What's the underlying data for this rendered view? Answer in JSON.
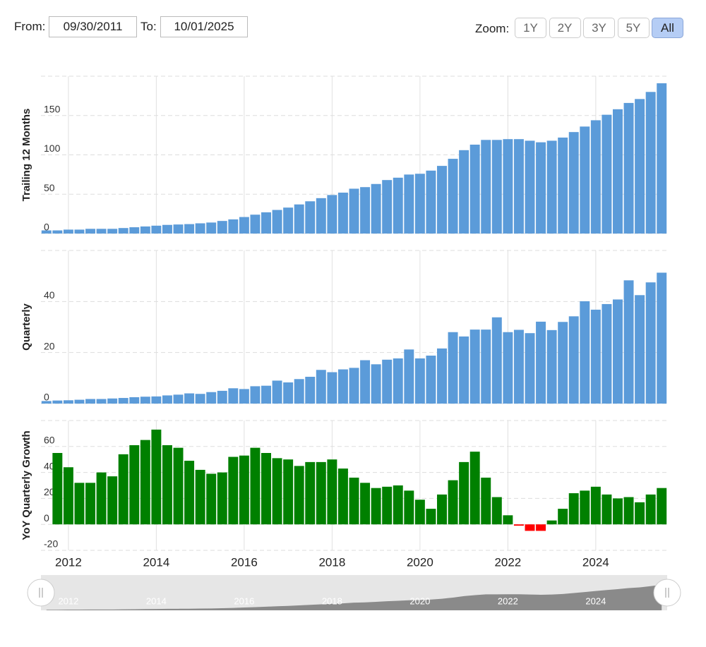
{
  "controls": {
    "from_label": "From:",
    "from_value": "09/30/2011",
    "to_label": "To:",
    "to_value": "10/01/2025",
    "zoom_label": "Zoom:",
    "zoom_buttons": [
      "1Y",
      "2Y",
      "3Y",
      "5Y",
      "All"
    ],
    "zoom_active_index": 4
  },
  "chart_data": [
    {
      "type": "bar",
      "y_label": "Trailing 12 Months",
      "color": "#5b9bd9",
      "x": [
        2011.5,
        2011.75,
        2012,
        2012.25,
        2012.5,
        2012.75,
        2013,
        2013.25,
        2013.5,
        2013.75,
        2014,
        2014.25,
        2014.5,
        2014.75,
        2015,
        2015.25,
        2015.5,
        2015.75,
        2016,
        2016.25,
        2016.5,
        2016.75,
        2017,
        2017.25,
        2017.5,
        2017.75,
        2018,
        2018.25,
        2018.5,
        2018.75,
        2019,
        2019.25,
        2019.5,
        2019.75,
        2020,
        2020.25,
        2020.5,
        2020.75,
        2021,
        2021.25,
        2021.5,
        2021.75,
        2022,
        2022.25,
        2022.5,
        2022.75,
        2023,
        2023.25,
        2023.5,
        2023.75,
        2024,
        2024.25,
        2024.5,
        2024.75,
        2025,
        2025.25,
        2025.5
      ],
      "values": [
        4,
        4,
        5,
        5,
        6,
        6,
        6,
        7,
        8,
        9,
        10,
        11,
        11.5,
        12,
        13,
        14,
        16,
        18,
        21,
        24,
        27,
        30,
        33,
        37,
        41,
        45,
        49,
        52,
        57,
        59,
        63,
        68,
        71,
        75,
        76,
        80,
        86,
        95,
        106,
        113,
        119,
        119,
        120,
        120,
        118,
        116,
        118,
        122,
        129,
        136,
        144,
        151,
        158,
        166,
        171,
        180,
        191
      ],
      "xlim": [
        2011.375,
        2025.625
      ],
      "xticks": [
        2012,
        2014,
        2016,
        2018,
        2020,
        2022,
        2024
      ],
      "ylim": [
        0,
        200
      ],
      "yticks": [
        0,
        50,
        100,
        150
      ],
      "grid": true
    },
    {
      "type": "bar",
      "y_label": "Quarterly",
      "color": "#5b9bd9",
      "x": [
        2011.5,
        2011.75,
        2012,
        2012.25,
        2012.5,
        2012.75,
        2013,
        2013.25,
        2013.5,
        2013.75,
        2014,
        2014.25,
        2014.5,
        2014.75,
        2015,
        2015.25,
        2015.5,
        2015.75,
        2016,
        2016.25,
        2016.5,
        2016.75,
        2017,
        2017.25,
        2017.5,
        2017.75,
        2018,
        2018.25,
        2018.5,
        2018.75,
        2019,
        2019.25,
        2019.5,
        2019.75,
        2020,
        2020.25,
        2020.5,
        2020.75,
        2021,
        2021.25,
        2021.5,
        2021.75,
        2022,
        2022.25,
        2022.5,
        2022.75,
        2023,
        2023.25,
        2023.5,
        2023.75,
        2024,
        2024.25,
        2024.5,
        2024.75,
        2025,
        2025.25,
        2025.5
      ],
      "values": [
        1,
        1.2,
        1.3,
        1.5,
        1.8,
        1.8,
        2,
        2.2,
        2.5,
        2.7,
        2.8,
        3.2,
        3.5,
        4,
        3.8,
        4.5,
        5,
        6,
        5.7,
        6.8,
        7,
        9,
        8.3,
        9.6,
        10.5,
        13.2,
        12.3,
        13.4,
        14,
        17,
        15.4,
        17.2,
        17.7,
        21.2,
        17.7,
        18.8,
        21.6,
        28,
        26.3,
        29,
        29,
        33.8,
        28,
        28.9,
        27.6,
        32.1,
        28.8,
        32,
        34.2,
        40.1,
        36.8,
        39,
        40.8,
        48.3,
        42.5,
        47.5,
        51.3
      ],
      "xlim": [
        2011.375,
        2025.625
      ],
      "xticks": [
        2012,
        2014,
        2016,
        2018,
        2020,
        2022,
        2024
      ],
      "ylim": [
        0,
        60
      ],
      "yticks": [
        0,
        20,
        40
      ],
      "grid": true
    },
    {
      "type": "bar",
      "y_label": "YoY Quarterly Growth",
      "color": "#008000",
      "negative_color": "#ff0000",
      "x": [
        2011.5,
        2011.75,
        2012,
        2012.25,
        2012.5,
        2012.75,
        2013,
        2013.25,
        2013.5,
        2013.75,
        2014,
        2014.25,
        2014.5,
        2014.75,
        2015,
        2015.25,
        2015.5,
        2015.75,
        2016,
        2016.25,
        2016.5,
        2016.75,
        2017,
        2017.25,
        2017.5,
        2017.75,
        2018,
        2018.25,
        2018.5,
        2018.75,
        2019,
        2019.25,
        2019.5,
        2019.75,
        2020,
        2020.25,
        2020.5,
        2020.75,
        2021,
        2021.25,
        2021.5,
        2021.75,
        2022,
        2022.25,
        2022.5,
        2022.75,
        2023,
        2023.25,
        2023.5,
        2023.75,
        2024,
        2024.25,
        2024.5,
        2024.75,
        2025,
        2025.25,
        2025.5
      ],
      "values": [
        null,
        55,
        44,
        32,
        32,
        40,
        37,
        54,
        61,
        65,
        73,
        61,
        59,
        49,
        42,
        39,
        40,
        52,
        53,
        59,
        55,
        51,
        50,
        45,
        48,
        48,
        50,
        43,
        36,
        32,
        28,
        29,
        30,
        26,
        19,
        12,
        23,
        34,
        48,
        56,
        36,
        21,
        7,
        -1,
        -5,
        -5,
        3,
        12,
        24,
        26,
        29,
        23,
        20,
        21,
        17,
        23,
        28
      ],
      "xlim": [
        2011.375,
        2025.625
      ],
      "xticks": [
        2012,
        2014,
        2016,
        2018,
        2020,
        2022,
        2024
      ],
      "ylim": [
        -20,
        80
      ],
      "yticks": [
        -20,
        0,
        20,
        40,
        60
      ],
      "grid": true
    }
  ]
}
